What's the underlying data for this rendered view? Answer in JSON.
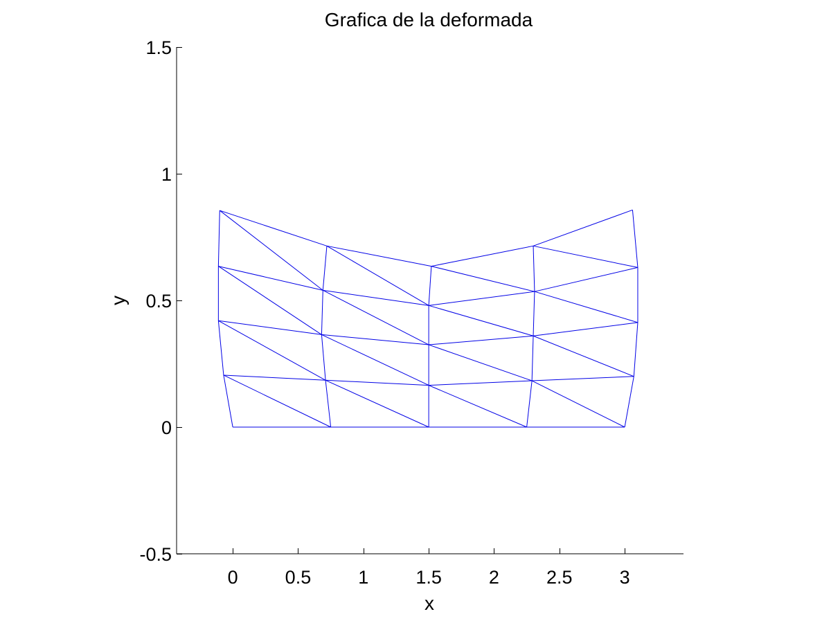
{
  "chart_data": {
    "type": "line",
    "title": "Grafica de la deformada",
    "xlabel": "x",
    "ylabel": "y",
    "xlim": [
      -0.43,
      3.45
    ],
    "ylim": [
      -0.5,
      1.5
    ],
    "xticks": [
      0,
      0.5,
      1,
      1.5,
      2,
      2.5,
      3
    ],
    "xtick_labels": [
      "0",
      "0.5",
      "1",
      "1.5",
      "2",
      "2.5",
      "3"
    ],
    "yticks": [
      -0.5,
      0,
      0.5,
      1,
      1.5
    ],
    "ytick_labels": [
      "-0.5",
      "0",
      "0.5",
      "1",
      "1.5"
    ],
    "grid": false,
    "line_color": "#0000e6",
    "series": [
      {
        "values_description_note": "",
        "nodes": [
          [
            [
              0.0,
              0.0
            ],
            [
              0.75,
              0.0
            ],
            [
              1.5,
              0.0
            ],
            [
              2.25,
              0.0
            ],
            [
              3.0,
              0.0
            ]
          ],
          [
            [
              -0.07,
              0.205
            ],
            [
              0.71,
              0.185
            ],
            [
              1.5,
              0.165
            ],
            [
              2.29,
              0.183
            ],
            [
              3.07,
              0.2
            ]
          ],
          [
            [
              -0.11,
              0.42
            ],
            [
              0.68,
              0.365
            ],
            [
              1.5,
              0.325
            ],
            [
              2.3,
              0.36
            ],
            [
              3.1,
              0.413
            ]
          ],
          [
            [
              -0.11,
              0.635
            ],
            [
              0.69,
              0.54
            ],
            [
              1.5,
              0.48
            ],
            [
              2.31,
              0.535
            ],
            [
              3.1,
              0.63
            ]
          ],
          [
            [
              -0.1,
              0.855
            ],
            [
              0.72,
              0.715
            ],
            [
              1.52,
              0.635
            ],
            [
              2.3,
              0.715
            ],
            [
              3.06,
              0.857
            ]
          ]
        ]
      }
    ]
  }
}
